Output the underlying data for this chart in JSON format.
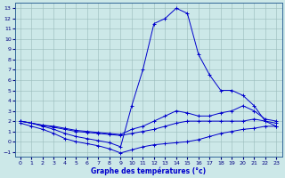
{
  "xlabel": "Graphe des températures (°c)",
  "xlim": [
    -0.5,
    23.5
  ],
  "ylim": [
    -1.5,
    13.5
  ],
  "xticks": [
    0,
    1,
    2,
    3,
    4,
    5,
    6,
    7,
    8,
    9,
    10,
    11,
    12,
    13,
    14,
    15,
    16,
    17,
    18,
    19,
    20,
    21,
    22,
    23
  ],
  "yticks": [
    -1,
    0,
    1,
    2,
    3,
    4,
    5,
    6,
    7,
    8,
    9,
    10,
    11,
    12,
    13
  ],
  "bg_color": "#cce8e8",
  "line_color": "#0000cc",
  "grid_color": "#99bbbb",
  "line1_x": [
    0,
    1,
    2,
    3,
    4,
    5,
    6,
    7,
    8,
    9,
    10,
    11,
    12,
    13,
    14,
    15,
    16,
    17,
    18,
    19,
    20,
    21,
    22,
    23
  ],
  "line1_y": [
    2.0,
    1.8,
    1.5,
    1.2,
    0.8,
    0.5,
    0.3,
    0.1,
    -0.1,
    -0.5,
    3.5,
    7.0,
    11.5,
    12.0,
    13.0,
    12.5,
    8.5,
    6.5,
    5.0,
    5.0,
    4.5,
    3.5,
    2.0,
    1.5
  ],
  "line2_x": [
    0,
    1,
    2,
    3,
    4,
    5,
    6,
    7,
    8,
    9,
    10,
    11,
    12,
    13,
    14,
    15,
    16,
    17,
    18,
    19,
    20,
    21,
    22,
    23
  ],
  "line2_y": [
    1.8,
    1.5,
    1.2,
    0.8,
    0.3,
    0.0,
    -0.2,
    -0.4,
    -0.7,
    -1.1,
    -0.8,
    -0.5,
    -0.3,
    -0.2,
    -0.1,
    0.0,
    0.2,
    0.5,
    0.8,
    1.0,
    1.2,
    1.3,
    1.5,
    1.5
  ],
  "line3_x": [
    0,
    1,
    2,
    3,
    4,
    5,
    6,
    7,
    8,
    9,
    10,
    11,
    12,
    13,
    14,
    15,
    16,
    17,
    18,
    19,
    20,
    21,
    22,
    23
  ],
  "line3_y": [
    2.0,
    1.8,
    1.6,
    1.4,
    1.2,
    1.0,
    0.9,
    0.8,
    0.7,
    0.6,
    0.8,
    1.0,
    1.2,
    1.5,
    1.8,
    2.0,
    2.0,
    2.0,
    2.0,
    2.0,
    2.0,
    2.2,
    2.0,
    1.8
  ],
  "line4_x": [
    0,
    1,
    2,
    3,
    4,
    5,
    6,
    7,
    8,
    9,
    10,
    11,
    12,
    13,
    14,
    15,
    16,
    17,
    18,
    19,
    20,
    21,
    22,
    23
  ],
  "line4_y": [
    2.0,
    1.8,
    1.6,
    1.5,
    1.3,
    1.1,
    1.0,
    0.9,
    0.8,
    0.7,
    1.2,
    1.5,
    2.0,
    2.5,
    3.0,
    2.8,
    2.5,
    2.5,
    2.8,
    3.0,
    3.5,
    3.0,
    2.2,
    2.0
  ]
}
